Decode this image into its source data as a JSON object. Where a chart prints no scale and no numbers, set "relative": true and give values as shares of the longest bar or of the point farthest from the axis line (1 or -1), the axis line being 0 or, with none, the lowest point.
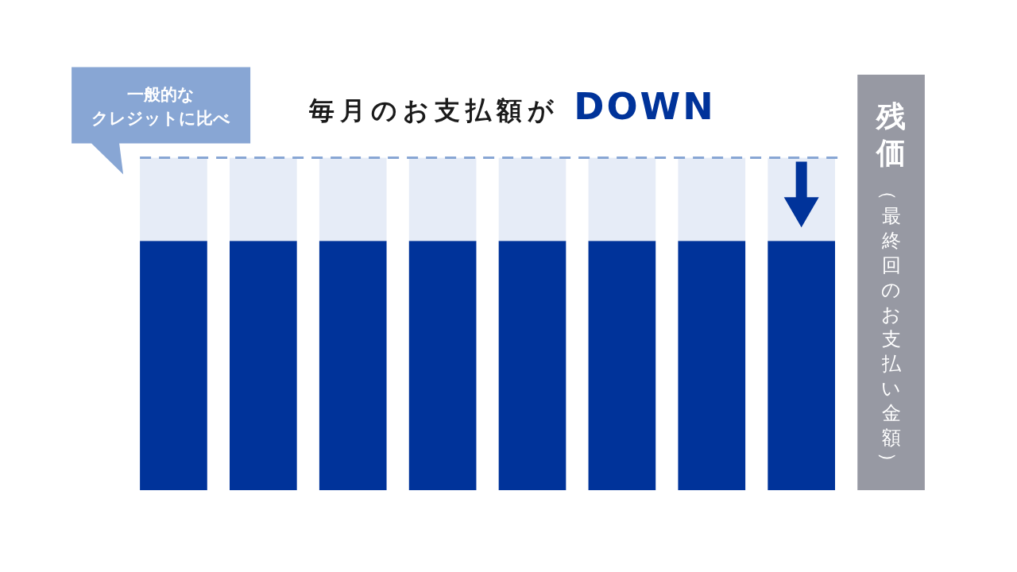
{
  "chart_data": {
    "type": "bar",
    "title": "毎月のお支払額が DOWN",
    "relative": true,
    "stacked": true,
    "categories": [
      null,
      null,
      null,
      null,
      null,
      null,
      null,
      null,
      "残価（最終回のお支払い金額）"
    ],
    "series": [
      {
        "color": "#00339a",
        "colors": [
          "#00339a",
          "#00339a",
          "#00339a",
          "#00339a",
          "#00339a",
          "#00339a",
          "#00339a",
          "#00339a",
          "#9799a3"
        ],
        "values": [
          0.6,
          0.6,
          0.6,
          0.6,
          0.6,
          0.6,
          0.6,
          0.6,
          1
        ]
      },
      {
        "color": "#e6ecf7",
        "values": [
          0.2,
          0.2,
          0.2,
          0.2,
          0.2,
          0.2,
          0.2,
          0.2,
          null
        ]
      }
    ],
    "ref_lines": [
      {
        "axis": "y",
        "value": 0.8,
        "label": "一般的なクレジットに比べ",
        "color": "#88a6d4",
        "line_style": "dashed"
      }
    ]
  }
}
